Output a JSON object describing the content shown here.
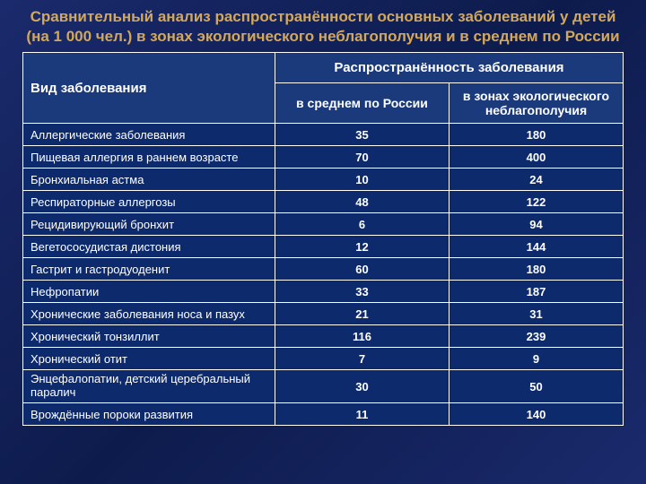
{
  "title": "Сравнительный анализ распространённости основных заболеваний у детей (на 1 000 чел.) в зонах экологического неблагополучия и в среднем по России",
  "table": {
    "type": "table",
    "header": {
      "disease": "Вид заболевания",
      "prevalence": "Распространённость заболевания",
      "avg": "в среднем по России",
      "zone": "в зонах экологического неблагополучия"
    },
    "columns": [
      "disease",
      "avg_russia",
      "eco_zone"
    ],
    "col_widths_pct": [
      42,
      24,
      34
    ],
    "text_color": "#ffffff",
    "border_color": "#ffffff",
    "header_bg": "#1a3a7c",
    "cell_bg": "#0d2a6c",
    "header_fontsize_pt": 15,
    "subheader_fontsize_pt": 14,
    "cell_fontsize_pt": 13,
    "rows": [
      {
        "disease": "Аллергические заболевания",
        "avg": "35",
        "zone": "180"
      },
      {
        "disease": "Пищевая аллергия в раннем возрасте",
        "avg": "70",
        "zone": "400"
      },
      {
        "disease": "Бронхиальная астма",
        "avg": "10",
        "zone": "24"
      },
      {
        "disease": "Респираторные аллергозы",
        "avg": "48",
        "zone": "122"
      },
      {
        "disease": "Рецидивирующий бронхит",
        "avg": "6",
        "zone": "94"
      },
      {
        "disease": "Вегетососудистая дистония",
        "avg": "12",
        "zone": "144"
      },
      {
        "disease": "Гастрит и гастродуоденит",
        "avg": "60",
        "zone": "180"
      },
      {
        "disease": "Нефропатии",
        "avg": "33",
        "zone": "187"
      },
      {
        "disease": "Хронические заболевания носа и пазух",
        "avg": "21",
        "zone": "31"
      },
      {
        "disease": "Хронический тонзиллит",
        "avg": "116",
        "zone": "239"
      },
      {
        "disease": "Хронический отит",
        "avg": "7",
        "zone": "9"
      },
      {
        "disease": "Энцефалопатии, детский церебральный паралич",
        "avg": "30",
        "zone": "50"
      },
      {
        "disease": "Врождённые пороки развития",
        "avg": "11",
        "zone": "140"
      }
    ]
  },
  "background_gradient": [
    "#1a2a6c",
    "#0d1b4c",
    "#1a2a6c"
  ],
  "title_color": "#d4a85a",
  "title_fontsize_pt": 17
}
